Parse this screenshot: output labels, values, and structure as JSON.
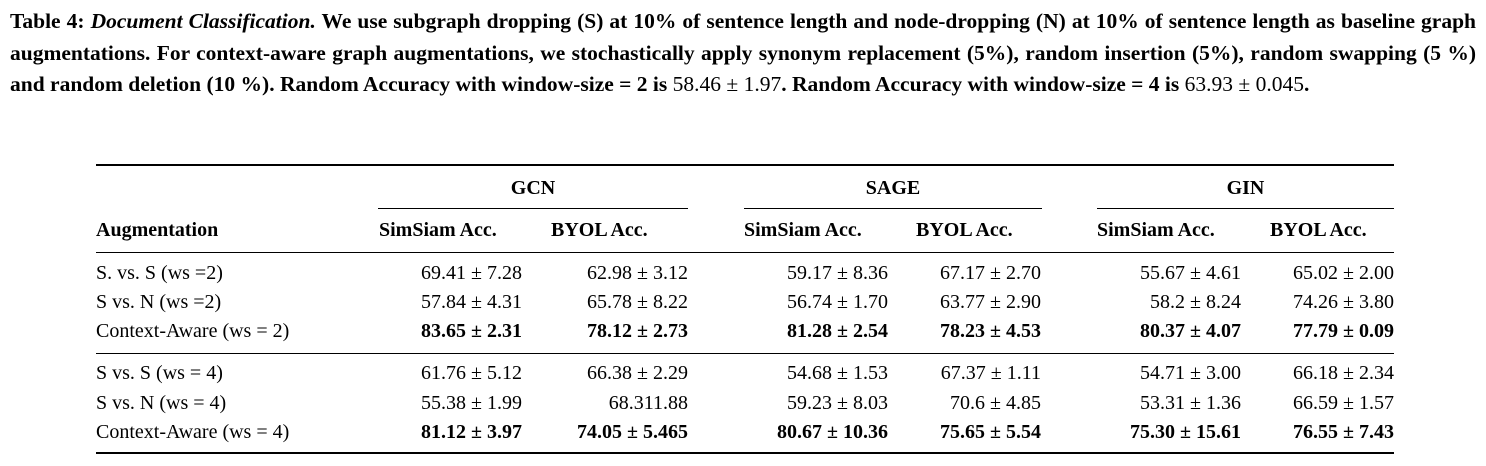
{
  "caption": {
    "label": "Table 4:",
    "topic": "Document Classification.",
    "text_1": "We use subgraph dropping (S) at 10% of sentence length and node-dropping (N) at 10% of sentence length as baseline graph augmentations. For context-aware graph augmentations, we stochastically apply synonym replacement (5%), random insertion (5%), random swapping (5 %) and random deletion (10 %). Random Accuracy with window-size = 2 is",
    "value_1": "58.46 ± 1.97",
    "text_2": ". Random Accuracy with window-size = 4 is",
    "value_2": "63.93 ± 0.045",
    "text_3": "."
  },
  "table": {
    "groups": [
      "GCN",
      "SAGE",
      "GIN"
    ],
    "row_header": "Augmentation",
    "subheaders": [
      "SimSiam Acc.",
      "BYOL Acc.",
      "SimSiam Acc.",
      "BYOL Acc.",
      "SimSiam Acc.",
      "BYOL Acc."
    ],
    "rows": [
      {
        "label": "S. vs. S (ws =2)",
        "bold": false,
        "values": [
          "69.41 ± 7.28",
          "62.98 ± 3.12",
          "59.17 ± 8.36",
          "67.17 ± 2.70",
          "55.67 ± 4.61",
          "65.02 ± 2.00"
        ]
      },
      {
        "label": "S vs. N (ws =2)",
        "bold": false,
        "values": [
          "57.84 ± 4.31",
          "65.78 ± 8.22",
          "56.74 ± 1.70",
          "63.77 ± 2.90",
          "58.2 ± 8.24",
          "74.26 ± 3.80"
        ]
      },
      {
        "label": "Context-Aware (ws = 2)",
        "bold": true,
        "values": [
          "83.65 ± 2.31",
          "78.12 ± 2.73",
          "81.28 ± 2.54",
          "78.23 ± 4.53",
          "80.37 ± 4.07",
          "77.79 ± 0.09"
        ]
      },
      {
        "label": "S vs. S (ws = 4)",
        "bold": false,
        "values": [
          "61.76 ± 5.12",
          "66.38 ± 2.29",
          "54.68 ± 1.53",
          "67.37 ± 1.11",
          "54.71 ± 3.00",
          "66.18 ± 2.34"
        ]
      },
      {
        "label": "S vs. N (ws = 4)",
        "bold": false,
        "values": [
          "55.38 ± 1.99",
          "68.311.88",
          "59.23 ± 8.03",
          "70.6 ± 4.85",
          "53.31 ± 1.36",
          "66.59 ± 1.57"
        ]
      },
      {
        "label": "Context-Aware (ws = 4)",
        "bold": true,
        "values": [
          "81.12 ± 3.97",
          "74.05 ± 5.465",
          "80.67 ± 10.36",
          "75.65 ± 5.54",
          "75.30 ± 15.61",
          "76.55 ± 7.43"
        ]
      }
    ]
  }
}
